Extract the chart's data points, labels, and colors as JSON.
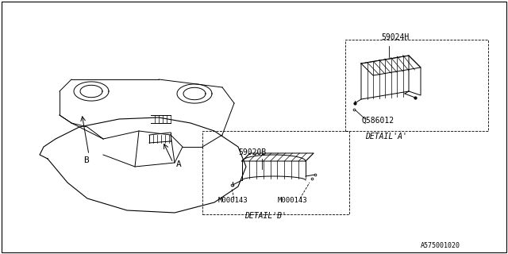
{
  "title": "",
  "background_color": "#ffffff",
  "border_color": "#000000",
  "text_color": "#000000",
  "line_color": "#000000",
  "fig_width": 6.4,
  "fig_height": 3.2,
  "dpi": 100,
  "label_A": "A",
  "label_B": "B",
  "part_59024H": "59024H",
  "part_Q586012": "Q586012",
  "part_59020B": "59020B",
  "part_M000143_1": "M000143",
  "part_M000143_2": "M000143",
  "detail_A": "DETAIL'A'",
  "detail_B": "DETAIL'B'",
  "watermark": "A575001020",
  "font_size_labels": 7,
  "font_size_watermark": 6
}
